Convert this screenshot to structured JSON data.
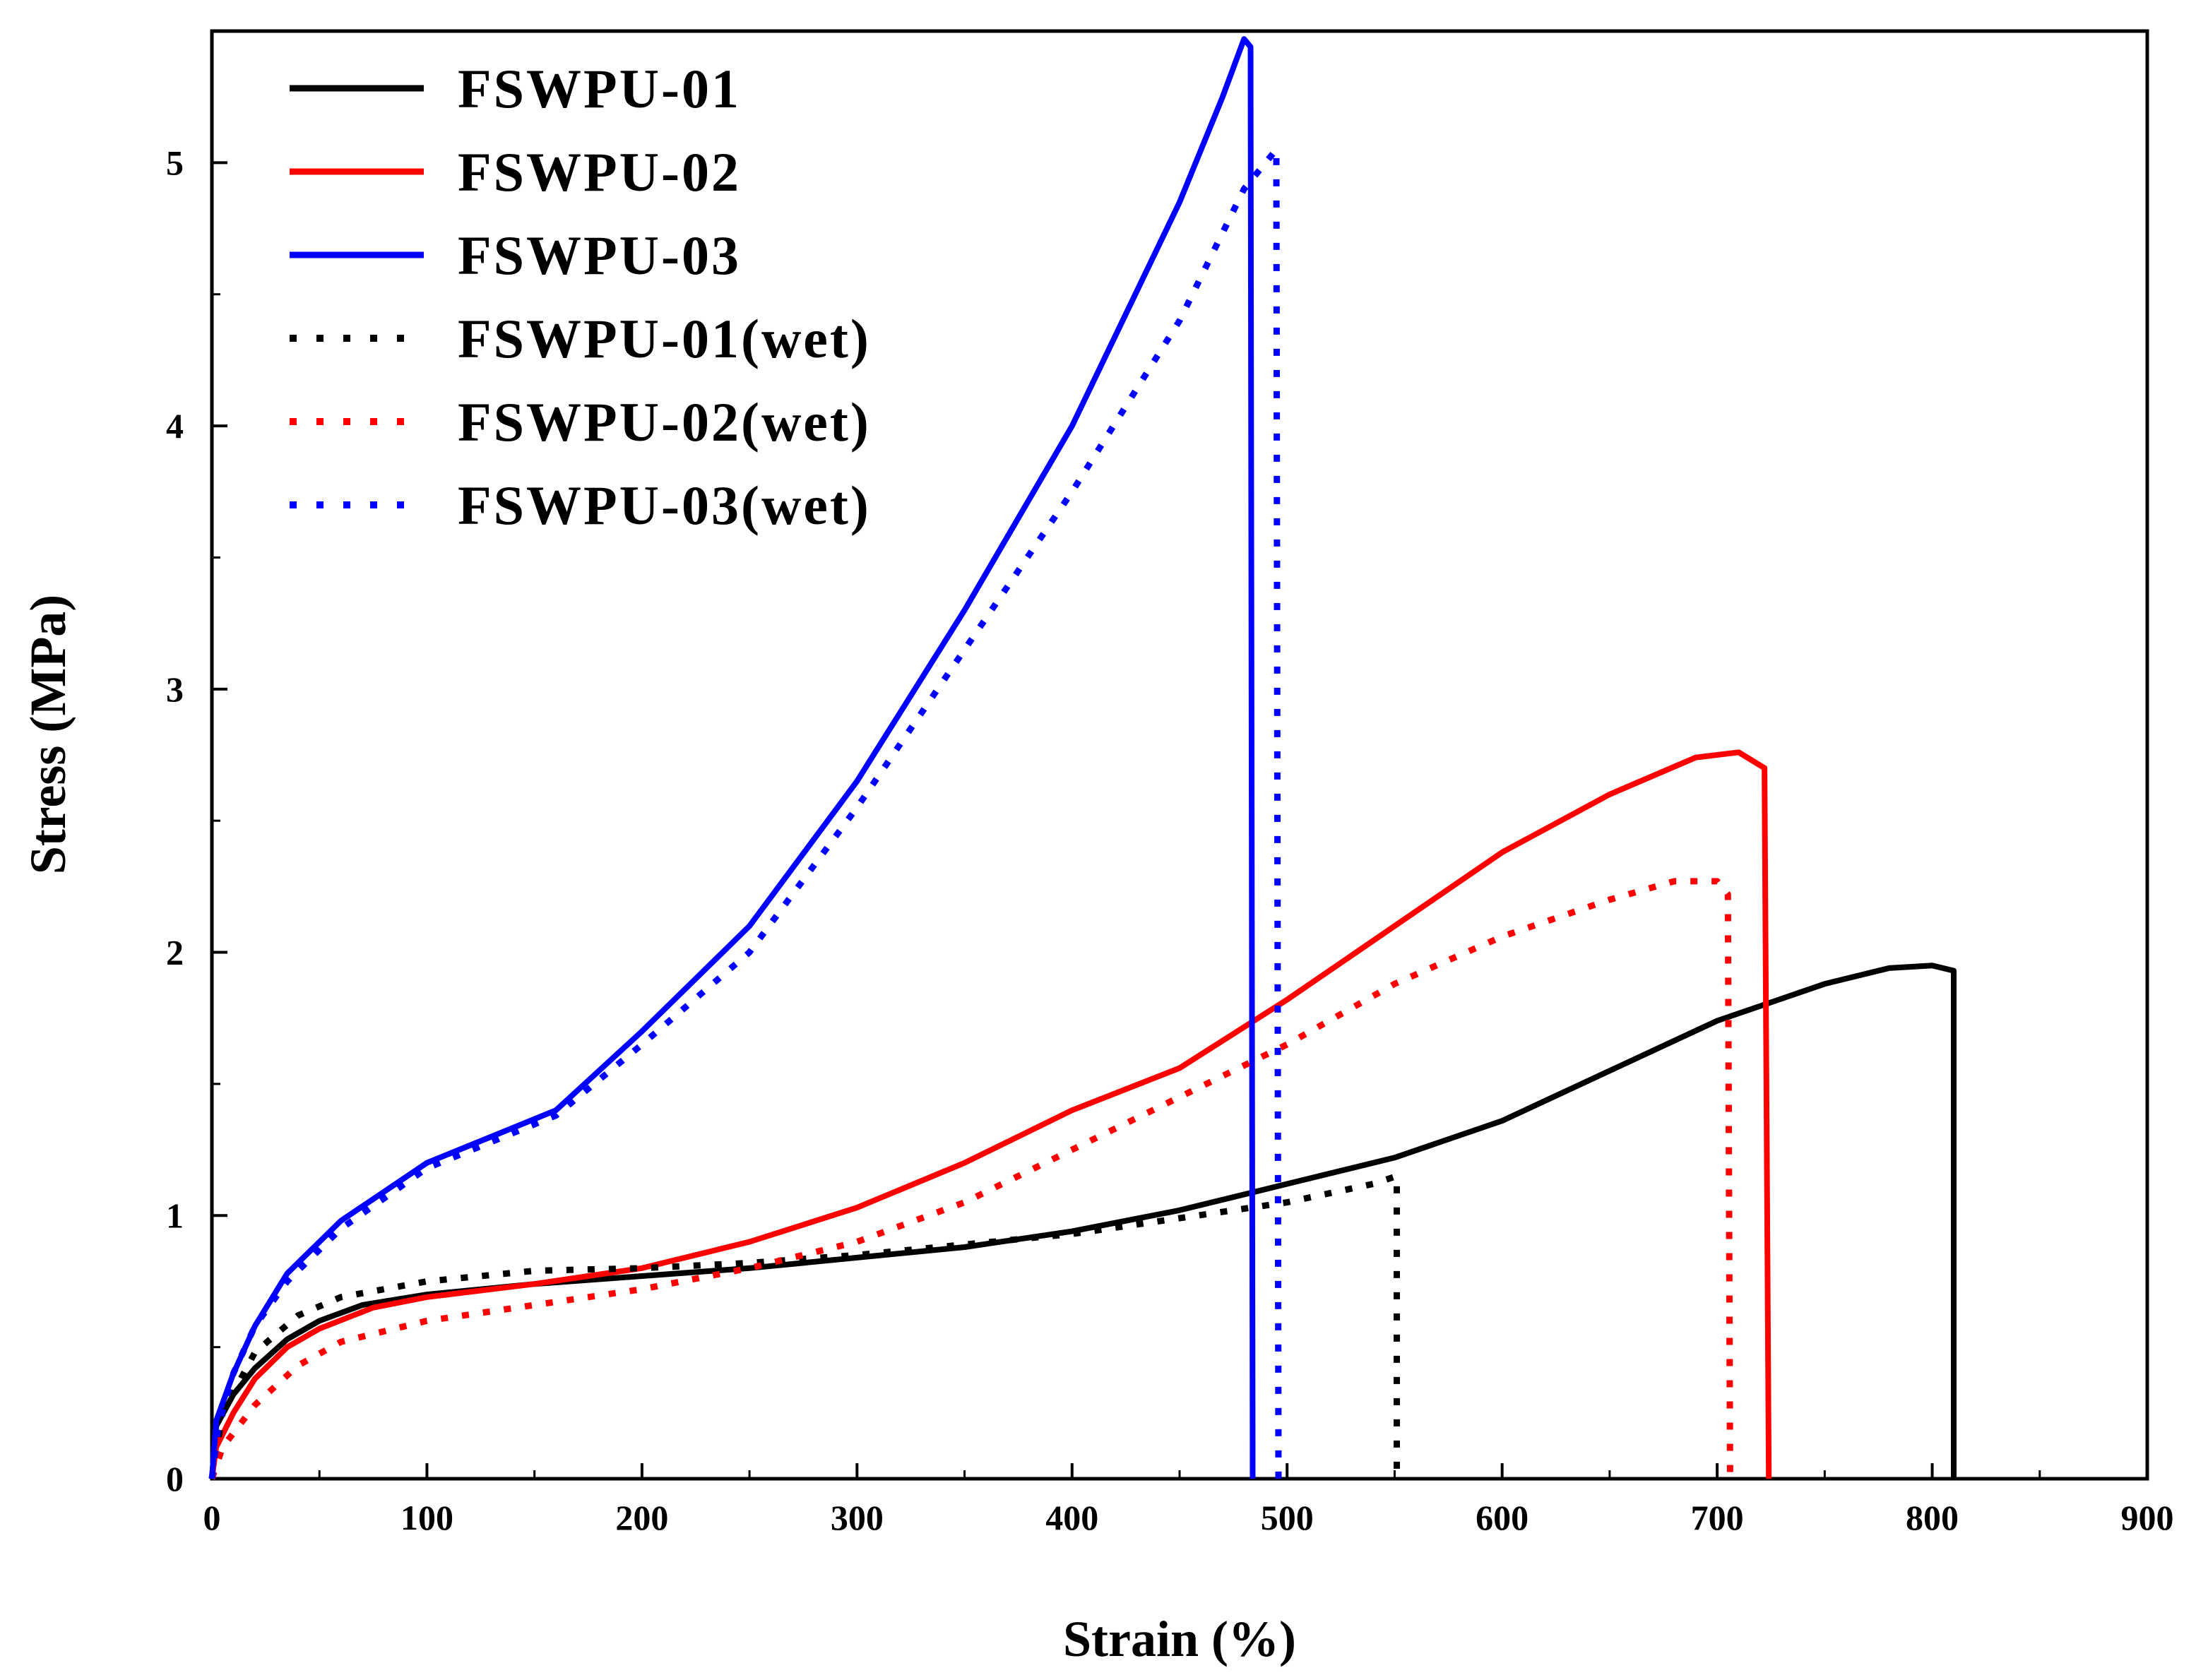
{
  "chart_data": {
    "type": "line",
    "title": "",
    "xlabel": "Strain (%)",
    "ylabel": "Stress (MPa)",
    "xlim": [
      0,
      900
    ],
    "ylim": [
      0,
      5.5
    ],
    "xticks": [
      "0",
      "100",
      "200",
      "300",
      "400",
      "500",
      "600",
      "700",
      "800",
      "900"
    ],
    "yticks": [
      "0",
      "1",
      "2",
      "3",
      "4",
      "5"
    ],
    "legend_position": "top-left",
    "series": [
      {
        "name": "FSWPU-01",
        "style": "solid",
        "color": "#000000",
        "points": [
          [
            0,
            0
          ],
          [
            2,
            0.2
          ],
          [
            10,
            0.32
          ],
          [
            20,
            0.42
          ],
          [
            35,
            0.53
          ],
          [
            50,
            0.6
          ],
          [
            70,
            0.66
          ],
          [
            100,
            0.7
          ],
          [
            150,
            0.74
          ],
          [
            200,
            0.77
          ],
          [
            250,
            0.8
          ],
          [
            300,
            0.84
          ],
          [
            350,
            0.88
          ],
          [
            400,
            0.94
          ],
          [
            450,
            1.02
          ],
          [
            500,
            1.12
          ],
          [
            550,
            1.22
          ],
          [
            600,
            1.36
          ],
          [
            650,
            1.55
          ],
          [
            700,
            1.74
          ],
          [
            750,
            1.88
          ],
          [
            780,
            1.94
          ],
          [
            800,
            1.95
          ],
          [
            810,
            1.93
          ],
          [
            810,
            0
          ]
        ]
      },
      {
        "name": "FSWPU-02",
        "style": "solid",
        "color": "#ff0000",
        "points": [
          [
            0,
            0
          ],
          [
            2,
            0.12
          ],
          [
            10,
            0.25
          ],
          [
            20,
            0.38
          ],
          [
            35,
            0.5
          ],
          [
            50,
            0.57
          ],
          [
            75,
            0.65
          ],
          [
            100,
            0.69
          ],
          [
            150,
            0.74
          ],
          [
            200,
            0.8
          ],
          [
            250,
            0.9
          ],
          [
            300,
            1.03
          ],
          [
            350,
            1.2
          ],
          [
            400,
            1.4
          ],
          [
            450,
            1.56
          ],
          [
            500,
            1.82
          ],
          [
            550,
            2.1
          ],
          [
            600,
            2.38
          ],
          [
            650,
            2.6
          ],
          [
            690,
            2.74
          ],
          [
            710,
            2.76
          ],
          [
            722,
            2.7
          ],
          [
            724,
            0
          ]
        ]
      },
      {
        "name": "FSWPU-03",
        "style": "solid",
        "color": "#0000ff",
        "points": [
          [
            0,
            0
          ],
          [
            2,
            0.22
          ],
          [
            10,
            0.4
          ],
          [
            20,
            0.58
          ],
          [
            35,
            0.78
          ],
          [
            60,
            0.98
          ],
          [
            100,
            1.2
          ],
          [
            130,
            1.3
          ],
          [
            160,
            1.4
          ],
          [
            200,
            1.7
          ],
          [
            250,
            2.1
          ],
          [
            300,
            2.65
          ],
          [
            350,
            3.3
          ],
          [
            400,
            4.0
          ],
          [
            450,
            4.85
          ],
          [
            470,
            5.25
          ],
          [
            480,
            5.47
          ],
          [
            483,
            5.44
          ],
          [
            484,
            0
          ]
        ]
      },
      {
        "name": "FSWPU-01(wet)",
        "style": "dotted",
        "color": "#000000",
        "points": [
          [
            0,
            0
          ],
          [
            5,
            0.25
          ],
          [
            20,
            0.48
          ],
          [
            40,
            0.62
          ],
          [
            60,
            0.69
          ],
          [
            100,
            0.75
          ],
          [
            150,
            0.79
          ],
          [
            200,
            0.8
          ],
          [
            250,
            0.82
          ],
          [
            300,
            0.85
          ],
          [
            350,
            0.89
          ],
          [
            400,
            0.93
          ],
          [
            450,
            0.99
          ],
          [
            500,
            1.05
          ],
          [
            540,
            1.12
          ],
          [
            551,
            1.15
          ],
          [
            551,
            0
          ]
        ]
      },
      {
        "name": "FSWPU-02(wet)",
        "style": "dotted",
        "color": "#ff0000",
        "points": [
          [
            0,
            0
          ],
          [
            5,
            0.12
          ],
          [
            20,
            0.28
          ],
          [
            40,
            0.43
          ],
          [
            60,
            0.52
          ],
          [
            100,
            0.6
          ],
          [
            150,
            0.66
          ],
          [
            200,
            0.72
          ],
          [
            250,
            0.8
          ],
          [
            300,
            0.9
          ],
          [
            350,
            1.05
          ],
          [
            400,
            1.25
          ],
          [
            450,
            1.45
          ],
          [
            500,
            1.65
          ],
          [
            550,
            1.88
          ],
          [
            600,
            2.06
          ],
          [
            650,
            2.2
          ],
          [
            680,
            2.27
          ],
          [
            700,
            2.27
          ],
          [
            705,
            2.22
          ],
          [
            706,
            0
          ]
        ]
      },
      {
        "name": "FSWPU-03(wet)",
        "style": "dotted",
        "color": "#0000ff",
        "points": [
          [
            0,
            0
          ],
          [
            3,
            0.2
          ],
          [
            10,
            0.4
          ],
          [
            20,
            0.58
          ],
          [
            35,
            0.75
          ],
          [
            60,
            0.95
          ],
          [
            100,
            1.18
          ],
          [
            130,
            1.28
          ],
          [
            160,
            1.38
          ],
          [
            200,
            1.65
          ],
          [
            250,
            2.0
          ],
          [
            300,
            2.55
          ],
          [
            350,
            3.15
          ],
          [
            400,
            3.75
          ],
          [
            450,
            4.4
          ],
          [
            480,
            4.9
          ],
          [
            495,
            5.05
          ],
          [
            496,
            0
          ]
        ]
      }
    ]
  }
}
